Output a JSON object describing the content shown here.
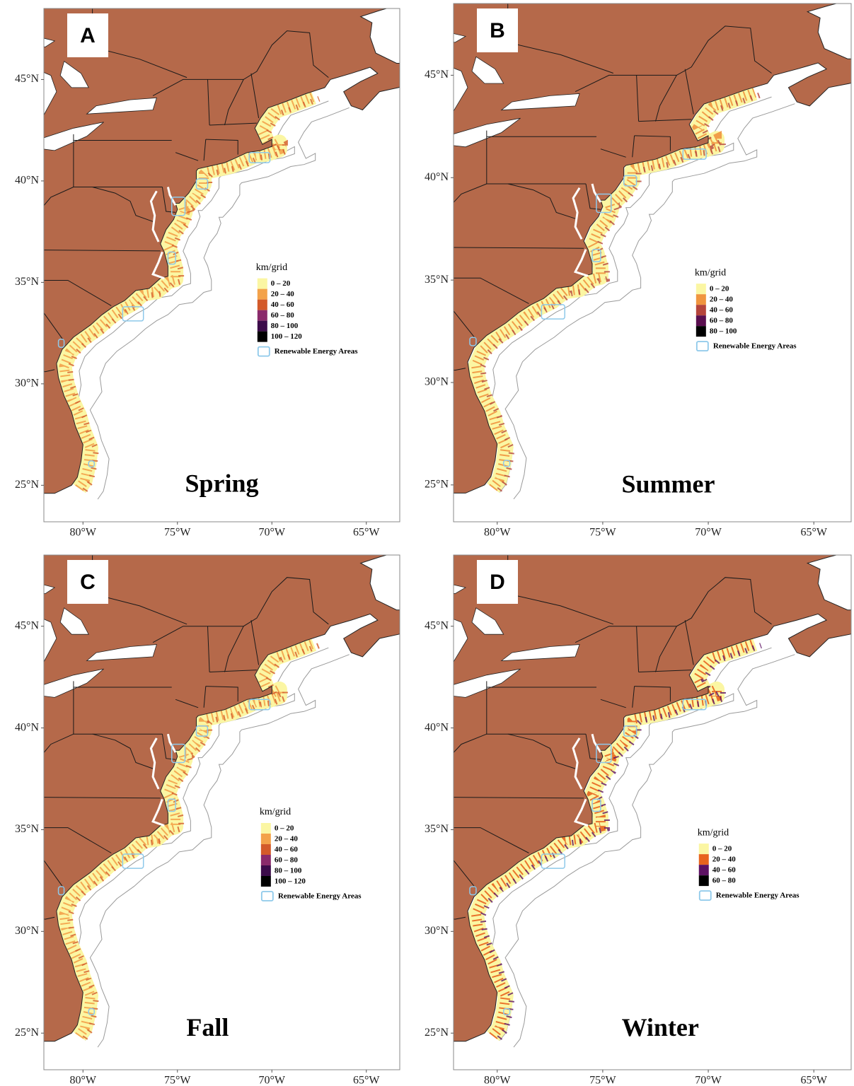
{
  "panels": [
    {
      "letter": "A",
      "season": "Spring",
      "legend": {
        "title": "km/grid",
        "entries": [
          {
            "label": "0 – 20",
            "color": "#fbf6a3"
          },
          {
            "label": "20 – 40",
            "color": "#f3a24a"
          },
          {
            "label": "40 – 60",
            "color": "#d35a2a"
          },
          {
            "label": "60 – 80",
            "color": "#8a2a6b"
          },
          {
            "label": "80 – 100",
            "color": "#3c0b4a"
          },
          {
            "label": "100 – 120",
            "color": "#000000"
          }
        ],
        "area_label": "Renewable Energy Areas",
        "area_color": "#8ec9ea"
      },
      "lat_ticks": [
        {
          "value": 45,
          "label": "45°N"
        },
        {
          "value": 40,
          "label": "40°N"
        },
        {
          "value": 35,
          "label": "35°N"
        },
        {
          "value": 30,
          "label": "30°N"
        },
        {
          "value": 25,
          "label": "25°N"
        }
      ],
      "lon_ticks": [
        {
          "value": -80,
          "label": "80°W"
        },
        {
          "value": -75,
          "label": "75°W"
        },
        {
          "value": -70,
          "label": "70°W"
        },
        {
          "value": -65,
          "label": "65°W"
        }
      ]
    },
    {
      "letter": "B",
      "season": "Summer",
      "legend": {
        "title": "km/grid",
        "entries": [
          {
            "label": "0 – 20",
            "color": "#fbf6a3"
          },
          {
            "label": "20 – 40",
            "color": "#f0953f"
          },
          {
            "label": "40 – 60",
            "color": "#b5453c"
          },
          {
            "label": "60 – 80",
            "color": "#5a0f4f"
          },
          {
            "label": "80 – 100",
            "color": "#000000"
          }
        ],
        "area_label": "Renewable Energy Areas",
        "area_color": "#8ec9ea"
      },
      "lat_ticks": [
        {
          "value": 45,
          "label": "45°N"
        },
        {
          "value": 40,
          "label": "40°N"
        },
        {
          "value": 35,
          "label": "35°N"
        },
        {
          "value": 30,
          "label": "30°N"
        },
        {
          "value": 25,
          "label": "25°N"
        }
      ],
      "lon_ticks": [
        {
          "value": -80,
          "label": "80°W"
        },
        {
          "value": -75,
          "label": "75°W"
        },
        {
          "value": -70,
          "label": "70°W"
        },
        {
          "value": -65,
          "label": "65°W"
        }
      ]
    },
    {
      "letter": "C",
      "season": "Fall",
      "legend": {
        "title": "km/grid",
        "entries": [
          {
            "label": "0 – 20",
            "color": "#fbf6a3"
          },
          {
            "label": "20 – 40",
            "color": "#f3a24a"
          },
          {
            "label": "40 – 60",
            "color": "#d35a2a"
          },
          {
            "label": "60 – 80",
            "color": "#8a2a6b"
          },
          {
            "label": "80 – 100",
            "color": "#3c0b4a"
          },
          {
            "label": "100 – 120",
            "color": "#000000"
          }
        ],
        "area_label": "Renewable Energy Areas",
        "area_color": "#8ec9ea"
      },
      "lat_ticks": [
        {
          "value": 45,
          "label": "45°N"
        },
        {
          "value": 40,
          "label": "40°N"
        },
        {
          "value": 35,
          "label": "35°N"
        },
        {
          "value": 30,
          "label": "30°N"
        },
        {
          "value": 25,
          "label": "25°N"
        }
      ],
      "lon_ticks": [
        {
          "value": -80,
          "label": "80°W"
        },
        {
          "value": -75,
          "label": "75°W"
        },
        {
          "value": -70,
          "label": "70°W"
        },
        {
          "value": -65,
          "label": "65°W"
        }
      ]
    },
    {
      "letter": "D",
      "season": "Winter",
      "legend": {
        "title": "km/grid",
        "entries": [
          {
            "label": "0 – 20",
            "color": "#fbf6a3"
          },
          {
            "label": "20 – 40",
            "color": "#e8641e"
          },
          {
            "label": "40 – 60",
            "color": "#5d1263"
          },
          {
            "label": "60 – 80",
            "color": "#000000"
          }
        ],
        "area_label": "Renewable Energy Areas",
        "area_color": "#8ec9ea"
      },
      "lat_ticks": [
        {
          "value": 45,
          "label": "45°N"
        },
        {
          "value": 40,
          "label": "40°N"
        },
        {
          "value": 35,
          "label": "35°N"
        },
        {
          "value": 30,
          "label": "30°N"
        },
        {
          "value": 25,
          "label": "25°N"
        }
      ],
      "lon_ticks": [
        {
          "value": -80,
          "label": "80°W"
        },
        {
          "value": -75,
          "label": "75°W"
        },
        {
          "value": -70,
          "label": "70°W"
        },
        {
          "value": -65,
          "label": "65°W"
        }
      ]
    }
  ]
}
